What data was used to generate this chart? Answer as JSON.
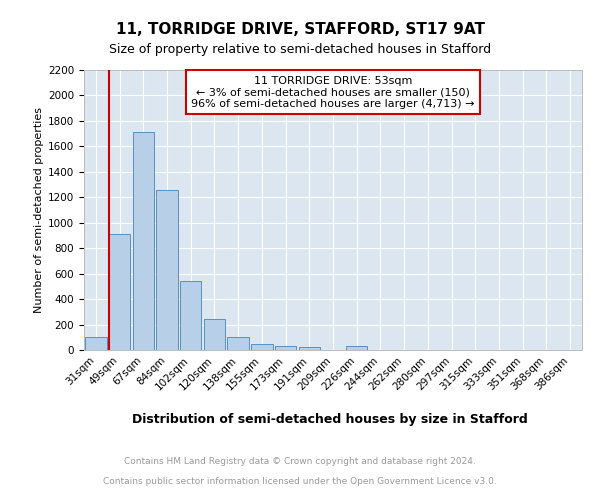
{
  "title": "11, TORRIDGE DRIVE, STAFFORD, ST17 9AT",
  "subtitle": "Size of property relative to semi-detached houses in Stafford",
  "xlabel": "Distribution of semi-detached houses by size in Stafford",
  "ylabel": "Number of semi-detached properties",
  "annotation_title": "11 TORRIDGE DRIVE: 53sqm",
  "annotation_line1": "← 3% of semi-detached houses are smaller (150)",
  "annotation_line2": "96% of semi-detached houses are larger (4,713) →",
  "bar_color": "#b8cfe8",
  "bar_edge_color": "#5a8fc0",
  "vline_color": "#cc0000",
  "annotation_box_edgecolor": "#cc0000",
  "background_color": "#dce6f0",
  "categories": [
    "31sqm",
    "49sqm",
    "67sqm",
    "84sqm",
    "102sqm",
    "120sqm",
    "138sqm",
    "155sqm",
    "173sqm",
    "191sqm",
    "209sqm",
    "226sqm",
    "244sqm",
    "262sqm",
    "280sqm",
    "297sqm",
    "315sqm",
    "333sqm",
    "351sqm",
    "368sqm",
    "386sqm"
  ],
  "values": [
    100,
    910,
    1710,
    1260,
    545,
    240,
    105,
    45,
    33,
    22,
    0,
    28,
    0,
    0,
    0,
    0,
    0,
    0,
    0,
    0,
    0
  ],
  "ylim": [
    0,
    2200
  ],
  "yticks": [
    0,
    200,
    400,
    600,
    800,
    1000,
    1200,
    1400,
    1600,
    1800,
    2000,
    2200
  ],
  "vline_x_index": 1,
  "footer_line1": "Contains HM Land Registry data © Crown copyright and database right 2024.",
  "footer_line2": "Contains public sector information licensed under the Open Government Licence v3.0.",
  "footer_color": "#999999",
  "title_fontsize": 11,
  "subtitle_fontsize": 9,
  "xlabel_fontsize": 9,
  "ylabel_fontsize": 8,
  "tick_fontsize": 7.5,
  "annotation_fontsize": 8,
  "footer_fontsize": 6.5
}
